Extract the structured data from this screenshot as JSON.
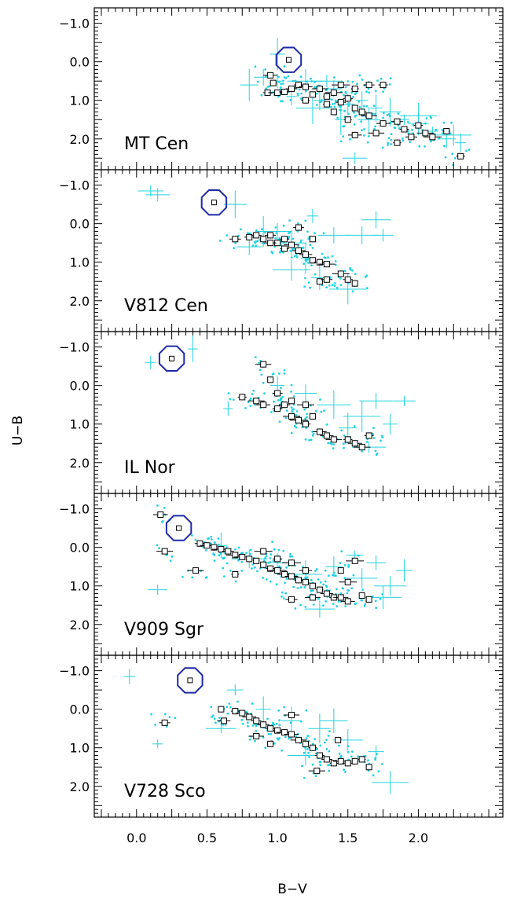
{
  "figure": {
    "xlabel": "B−V",
    "ylabel": "U−B"
  },
  "colors": {
    "comparison_stars": "#22d3e0",
    "cluster_points": "#000000",
    "target_marker": "#1c2aa8",
    "axes": "#000000"
  },
  "chart_data": [
    {
      "type": "scatter",
      "panel": "MT Cen",
      "label": "MT  Cen",
      "xlim": [
        -0.3,
        2.6
      ],
      "ylim": [
        2.8,
        -1.4
      ],
      "xticks": [
        "0.0",
        "0.5",
        "1.0",
        "1.5",
        "2.0"
      ],
      "yticks": [
        "−1.0",
        "0.0",
        "1.0",
        "2.0"
      ],
      "target": {
        "x": 1.08,
        "y": -0.05
      },
      "black": [
        [
          0.95,
          0.35
        ],
        [
          0.97,
          0.55
        ],
        [
          0.93,
          0.8
        ],
        [
          1.0,
          0.8
        ],
        [
          1.05,
          0.78
        ],
        [
          1.1,
          0.7
        ],
        [
          1.15,
          0.6
        ],
        [
          1.2,
          0.65
        ],
        [
          1.25,
          0.85
        ],
        [
          1.3,
          0.7
        ],
        [
          1.35,
          0.9
        ],
        [
          1.4,
          0.8
        ],
        [
          1.45,
          1.05
        ],
        [
          1.5,
          0.95
        ],
        [
          1.45,
          0.6
        ],
        [
          1.55,
          0.7
        ],
        [
          1.55,
          1.2
        ],
        [
          1.6,
          1.3
        ],
        [
          1.65,
          0.6
        ],
        [
          1.75,
          0.6
        ],
        [
          1.5,
          1.5
        ],
        [
          1.65,
          1.4
        ],
        [
          1.75,
          1.6
        ],
        [
          1.85,
          1.55
        ],
        [
          1.9,
          1.75
        ],
        [
          1.95,
          1.95
        ],
        [
          2.0,
          1.65
        ],
        [
          2.05,
          1.85
        ],
        [
          2.1,
          1.95
        ],
        [
          2.2,
          1.8
        ],
        [
          1.55,
          1.9
        ],
        [
          1.7,
          1.85
        ],
        [
          1.85,
          2.1
        ],
        [
          2.3,
          2.45
        ],
        [
          1.2,
          1.0
        ],
        [
          1.35,
          1.1
        ],
        [
          1.4,
          1.3
        ]
      ],
      "cyan": [
        [
          0.9,
          0.4
        ],
        [
          1.0,
          0.5
        ],
        [
          1.1,
          0.9
        ],
        [
          1.2,
          0.5
        ],
        [
          1.3,
          1.0
        ],
        [
          1.4,
          0.7
        ],
        [
          1.5,
          1.1
        ],
        [
          1.6,
          1.0
        ],
        [
          1.7,
          1.2
        ],
        [
          1.8,
          1.3
        ],
        [
          1.9,
          1.5
        ],
        [
          2.0,
          1.6
        ],
        [
          2.1,
          1.8
        ],
        [
          2.2,
          2.0
        ],
        [
          2.3,
          2.1
        ],
        [
          1.45,
          1.5
        ],
        [
          1.55,
          2.5
        ],
        [
          1.0,
          -0.2
        ],
        [
          0.8,
          0.6
        ],
        [
          1.25,
          1.2
        ],
        [
          1.65,
          1.5
        ],
        [
          1.35,
          0.5
        ],
        [
          2.0,
          1.4
        ],
        [
          2.25,
          1.9
        ]
      ]
    },
    {
      "type": "scatter",
      "panel": "V812 Cen",
      "label": "V812  Cen",
      "xlim": [
        -0.3,
        2.6
      ],
      "ylim": [
        2.8,
        -1.4
      ],
      "xticks": [
        "0.0",
        "0.5",
        "1.0",
        "1.5",
        "2.0"
      ],
      "yticks": [
        "−1.0",
        "0.0",
        "1.0",
        "2.0"
      ],
      "target": {
        "x": 0.55,
        "y": -0.55
      },
      "black": [
        [
          0.8,
          0.35
        ],
        [
          0.85,
          0.3
        ],
        [
          0.9,
          0.4
        ],
        [
          0.95,
          0.3
        ],
        [
          1.0,
          0.5
        ],
        [
          1.05,
          0.65
        ],
        [
          1.1,
          0.55
        ],
        [
          1.15,
          0.7
        ],
        [
          1.2,
          0.8
        ],
        [
          1.25,
          0.95
        ],
        [
          1.3,
          1.0
        ],
        [
          1.35,
          1.05
        ],
        [
          1.25,
          0.4
        ],
        [
          1.15,
          0.1
        ],
        [
          1.3,
          1.5
        ],
        [
          1.45,
          1.3
        ],
        [
          1.5,
          1.45
        ],
        [
          1.55,
          1.55
        ],
        [
          1.35,
          1.45
        ],
        [
          0.95,
          0.5
        ],
        [
          1.05,
          0.4
        ],
        [
          0.7,
          0.4
        ]
      ],
      "cyan": [
        [
          0.1,
          -0.85
        ],
        [
          0.15,
          -0.75
        ],
        [
          0.7,
          -0.5
        ],
        [
          1.0,
          0.2
        ],
        [
          1.1,
          0.5
        ],
        [
          1.2,
          0.9
        ],
        [
          1.4,
          0.3
        ],
        [
          1.6,
          0.3
        ],
        [
          1.7,
          -0.1
        ],
        [
          1.75,
          0.3
        ],
        [
          1.3,
          1.4
        ],
        [
          1.5,
          1.7
        ],
        [
          1.25,
          -0.2
        ],
        [
          0.8,
          0.6
        ],
        [
          1.1,
          1.2
        ],
        [
          0.9,
          0.2
        ]
      ]
    },
    {
      "type": "scatter",
      "panel": "IL Nor",
      "label": "IL  Nor",
      "xlim": [
        -0.3,
        2.6
      ],
      "ylim": [
        2.8,
        -1.4
      ],
      "xticks": [
        "0.0",
        "0.5",
        "1.0",
        "1.5",
        "2.0"
      ],
      "yticks": [
        "−1.0",
        "0.0",
        "1.0",
        "2.0"
      ],
      "target": {
        "x": 0.25,
        "y": -0.7
      },
      "black": [
        [
          0.9,
          -0.55
        ],
        [
          0.95,
          -0.15
        ],
        [
          0.85,
          0.4
        ],
        [
          0.75,
          0.3
        ],
        [
          0.9,
          0.5
        ],
        [
          1.0,
          0.6
        ],
        [
          1.05,
          0.5
        ],
        [
          1.1,
          0.8
        ],
        [
          1.15,
          0.9
        ],
        [
          1.2,
          1.0
        ],
        [
          1.25,
          0.8
        ],
        [
          1.3,
          1.2
        ],
        [
          1.35,
          1.3
        ],
        [
          1.4,
          1.4
        ],
        [
          1.5,
          1.4
        ],
        [
          1.55,
          1.5
        ],
        [
          1.6,
          1.6
        ],
        [
          1.65,
          1.3
        ],
        [
          1.0,
          0.2
        ],
        [
          1.1,
          0.4
        ],
        [
          1.2,
          0.5
        ]
      ],
      "cyan": [
        [
          0.1,
          -0.6
        ],
        [
          0.4,
          -0.95
        ],
        [
          0.65,
          0.6
        ],
        [
          1.0,
          0.0
        ],
        [
          1.2,
          0.2
        ],
        [
          1.4,
          0.5
        ],
        [
          1.6,
          0.8
        ],
        [
          1.8,
          1.0
        ],
        [
          1.7,
          0.4
        ],
        [
          1.9,
          0.4
        ],
        [
          1.5,
          1.1
        ],
        [
          1.65,
          1.6
        ]
      ]
    },
    {
      "type": "scatter",
      "panel": "V909 Sgr",
      "label": "V909  Sgr",
      "xlim": [
        -0.3,
        2.6
      ],
      "ylim": [
        2.8,
        -1.4
      ],
      "xticks": [
        "0.0",
        "0.5",
        "1.0",
        "1.5",
        "2.0"
      ],
      "yticks": [
        "−1.0",
        "0.0",
        "1.0",
        "2.0"
      ],
      "target": {
        "x": 0.3,
        "y": -0.5
      },
      "black": [
        [
          0.17,
          -0.85
        ],
        [
          0.2,
          0.1
        ],
        [
          0.42,
          0.6
        ],
        [
          0.45,
          -0.1
        ],
        [
          0.5,
          -0.05
        ],
        [
          0.55,
          0.0
        ],
        [
          0.6,
          0.05
        ],
        [
          0.65,
          0.1
        ],
        [
          0.7,
          0.2
        ],
        [
          0.75,
          0.25
        ],
        [
          0.8,
          0.3
        ],
        [
          0.85,
          0.35
        ],
        [
          0.9,
          0.45
        ],
        [
          0.95,
          0.55
        ],
        [
          1.0,
          0.6
        ],
        [
          1.05,
          0.7
        ],
        [
          1.1,
          0.75
        ],
        [
          1.15,
          0.85
        ],
        [
          1.2,
          0.9
        ],
        [
          1.25,
          1.0
        ],
        [
          1.3,
          1.1
        ],
        [
          1.35,
          1.2
        ],
        [
          1.4,
          1.3
        ],
        [
          1.45,
          1.3
        ],
        [
          1.5,
          1.4
        ],
        [
          0.9,
          0.1
        ],
        [
          1.0,
          0.3
        ],
        [
          1.1,
          0.4
        ],
        [
          1.2,
          0.6
        ],
        [
          1.5,
          0.9
        ],
        [
          1.6,
          1.25
        ],
        [
          1.65,
          1.35
        ],
        [
          1.55,
          0.35
        ],
        [
          1.25,
          1.3
        ],
        [
          1.1,
          1.35
        ],
        [
          1.45,
          0.6
        ],
        [
          0.7,
          0.7
        ]
      ],
      "cyan": [
        [
          0.15,
          1.1
        ],
        [
          0.6,
          -0.05
        ],
        [
          0.8,
          0.3
        ],
        [
          1.0,
          0.4
        ],
        [
          1.2,
          0.7
        ],
        [
          1.4,
          0.5
        ],
        [
          1.6,
          0.8
        ],
        [
          1.8,
          1.0
        ],
        [
          1.7,
          0.4
        ],
        [
          1.9,
          0.6
        ],
        [
          1.75,
          1.3
        ],
        [
          1.3,
          1.6
        ],
        [
          1.55,
          0.2
        ]
      ]
    },
    {
      "type": "scatter",
      "panel": "V728 Sco",
      "label": "V728  Sco",
      "xlim": [
        -0.3,
        2.6
      ],
      "ylim": [
        2.8,
        -1.4
      ],
      "xticks": [
        "0.0",
        "0.5",
        "1.0",
        "1.5",
        "2.0"
      ],
      "yticks": [
        "−1.0",
        "0.0",
        "1.0",
        "2.0"
      ],
      "target": {
        "x": 0.38,
        "y": -0.75
      },
      "black": [
        [
          0.2,
          0.35
        ],
        [
          0.6,
          0.0
        ],
        [
          0.62,
          0.3
        ],
        [
          0.7,
          0.05
        ],
        [
          0.75,
          0.1
        ],
        [
          0.8,
          0.2
        ],
        [
          0.85,
          0.3
        ],
        [
          0.9,
          0.4
        ],
        [
          0.95,
          0.5
        ],
        [
          1.0,
          0.55
        ],
        [
          1.05,
          0.6
        ],
        [
          1.1,
          0.65
        ],
        [
          1.15,
          0.8
        ],
        [
          1.2,
          0.9
        ],
        [
          1.25,
          1.0
        ],
        [
          1.3,
          1.2
        ],
        [
          1.35,
          1.3
        ],
        [
          1.4,
          1.4
        ],
        [
          1.45,
          1.35
        ],
        [
          1.5,
          1.4
        ],
        [
          1.55,
          1.35
        ],
        [
          1.6,
          1.3
        ],
        [
          1.65,
          1.5
        ],
        [
          1.28,
          1.6
        ],
        [
          1.43,
          0.8
        ],
        [
          0.95,
          0.9
        ],
        [
          1.1,
          0.15
        ],
        [
          0.85,
          0.7
        ]
      ],
      "cyan": [
        [
          -0.05,
          -0.85
        ],
        [
          0.15,
          0.9
        ],
        [
          0.7,
          -0.5
        ],
        [
          0.9,
          0.0
        ],
        [
          1.1,
          0.3
        ],
        [
          1.3,
          0.5
        ],
        [
          1.5,
          0.8
        ],
        [
          1.7,
          1.1
        ],
        [
          1.8,
          1.9
        ],
        [
          1.2,
          1.2
        ],
        [
          0.6,
          0.5
        ],
        [
          1.4,
          0.3
        ]
      ]
    }
  ]
}
